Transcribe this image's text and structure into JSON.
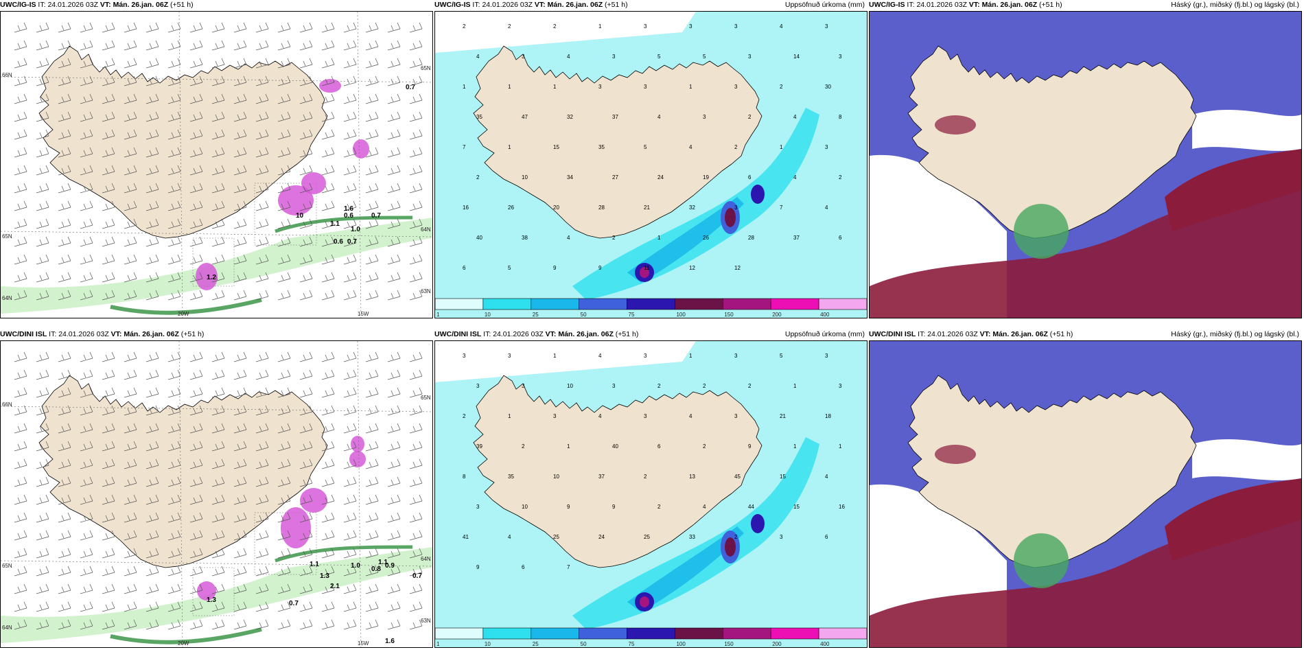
{
  "colors": {
    "land": "#efe2cf",
    "ocean": "#ffffff",
    "cyan_light": "#aef3f5",
    "cyan": "#2ee0ee",
    "sky": "#19b7ea",
    "blue": "#3f62dc",
    "navy": "#2b17b0",
    "maroon": "#6b1246",
    "purple": "#a5157f",
    "magenta": "#ee0fb4",
    "pink": "#f3a7ee",
    "cloud_high": "#49a860",
    "cloud_mid": "#5b5fcc",
    "cloud_low": "#8c1c3c",
    "wind_green_light": "#cdf0c8",
    "wind_green": "#2f8f3c",
    "precip_violet": "#d65ad8"
  },
  "rows": [
    {
      "model": "UWC/IG-IS",
      "panels": [
        {
          "kind": "wind",
          "model": "UWC/IG-IS",
          "it_label": "IT:",
          "it": "24.01.2026 03Z",
          "vt_label": "VT:",
          "vt": "Mán. 26.jan. 06Z",
          "lead": "(+51 h)",
          "right_title": "",
          "grid_labels": [
            "66N",
            "65N",
            "64N",
            "20W",
            "15W",
            "65N",
            "64N",
            "63N"
          ],
          "values": [
            "0.7",
            "1.6",
            "0.6",
            "1.1",
            "1.0",
            "0.7",
            "0.6",
            "0.7",
            "1.2",
            "10"
          ]
        },
        {
          "kind": "precip",
          "model": "UWC/IG-IS",
          "it_label": "IT:",
          "it": "24.01.2026 03Z",
          "vt_label": "VT:",
          "vt": "Mán. 26.jan. 06Z",
          "lead": "(+51 h)",
          "right_title": "Uppsöfnuð úrkoma (mm)",
          "legend": [
            "1",
            "10",
            "25",
            "50",
            "75",
            "100",
            "150",
            "200",
            "400"
          ],
          "values": [
            "2",
            "2",
            "2",
            "1",
            "3",
            "3",
            "3",
            "4",
            "3",
            "4",
            "3",
            "4",
            "3",
            "5",
            "5",
            "3",
            "14",
            "3",
            "1",
            "1",
            "1",
            "3",
            "3",
            "1",
            "3",
            "2",
            "30",
            "35",
            "47",
            "32",
            "37",
            "4",
            "3",
            "2",
            "4",
            "8",
            "7",
            "1",
            "15",
            "35",
            "5",
            "4",
            "2",
            "1",
            "3",
            "2",
            "10",
            "34",
            "27",
            "24",
            "19",
            "6",
            "4",
            "2",
            "16",
            "26",
            "20",
            "28",
            "21",
            "32",
            "3",
            "7",
            "4",
            "40",
            "38",
            "4",
            "2",
            "1",
            "26",
            "28",
            "37",
            "6",
            "6",
            "5",
            "9",
            "9",
            "11",
            "12",
            "12"
          ]
        },
        {
          "kind": "cloud",
          "model": "UWC/IG-IS",
          "it_label": "IT:",
          "it": "24.01.2026 03Z",
          "vt_label": "VT:",
          "vt": "Mán. 26.jan. 06Z",
          "lead": "(+51 h)",
          "right_title": "Háský (gr.), miðský (fj.bl.) og lágský (bl.)"
        }
      ]
    },
    {
      "model": "UWC/DINI ISL",
      "panels": [
        {
          "kind": "wind",
          "model": "UWC/DINI ISL",
          "it_label": "IT:",
          "it": "24.01.2026 03Z",
          "vt_label": "VT:",
          "vt": "Mán. 26.jan. 06Z",
          "lead": "(+51 h)",
          "right_title": "",
          "grid_labels": [
            "66N",
            "65N",
            "64N",
            "20W",
            "15W",
            "65N",
            "64N",
            "63N"
          ],
          "values": [
            "1.1",
            "0.8",
            "1.0",
            "0.9",
            "0.7",
            "0.7",
            "2.1",
            "1.3",
            "1.1",
            "1.6",
            "1.3"
          ]
        },
        {
          "kind": "precip",
          "model": "UWC/DINI ISL",
          "it_label": "IT:",
          "it": "24.01.2026 03Z",
          "vt_label": "VT:",
          "vt": "Mán. 26.jan. 06Z",
          "lead": "(+51 h)",
          "right_title": "Uppsöfnuð úrkoma (mm)",
          "legend": [
            "1",
            "10",
            "25",
            "50",
            "75",
            "100",
            "150",
            "200",
            "400"
          ],
          "values": [
            "3",
            "3",
            "1",
            "4",
            "3",
            "1",
            "3",
            "5",
            "3",
            "3",
            "3",
            "10",
            "3",
            "2",
            "2",
            "2",
            "1",
            "3",
            "2",
            "1",
            "3",
            "4",
            "3",
            "4",
            "3",
            "21",
            "18",
            "39",
            "2",
            "1",
            "40",
            "6",
            "2",
            "9",
            "1",
            "1",
            "8",
            "35",
            "10",
            "37",
            "2",
            "13",
            "45",
            "15",
            "4",
            "3",
            "10",
            "9",
            "9",
            "2",
            "4",
            "44",
            "15",
            "16",
            "41",
            "4",
            "25",
            "24",
            "25",
            "33",
            "2",
            "3",
            "6",
            "9",
            "6",
            "7"
          ]
        },
        {
          "kind": "cloud",
          "model": "UWC/DINI ISL",
          "it_label": "IT:",
          "it": "24.01.2026 03Z",
          "vt_label": "VT:",
          "vt": "Mán. 26.jan. 06Z",
          "lead": "(+51 h)",
          "right_title": "Háský (gr.), miðský (fj.bl.) og lágský (bl.)"
        }
      ]
    }
  ]
}
